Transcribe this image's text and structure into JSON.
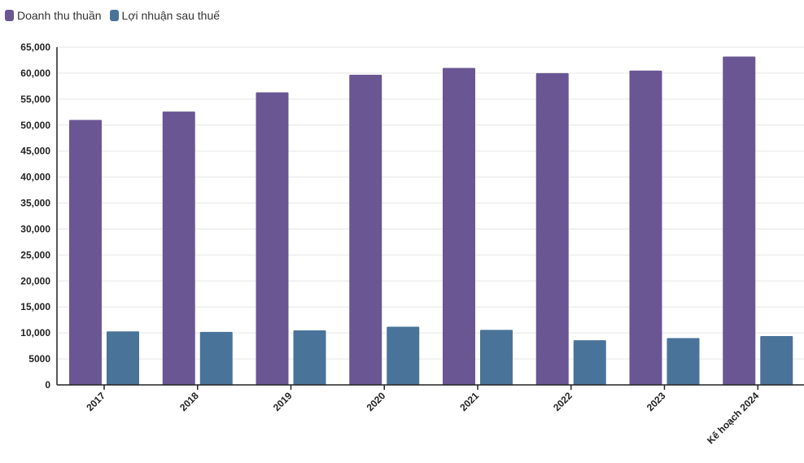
{
  "legend": [
    {
      "label": "Doanh thu thuần",
      "color": "#6a5693"
    },
    {
      "label": "Lợi nhuận sau thuế",
      "color": "#4a7399"
    }
  ],
  "chart_data": {
    "type": "bar",
    "categories": [
      "2017",
      "2018",
      "2019",
      "2020",
      "2021",
      "2022",
      "2023",
      "Kế hoạch 2024"
    ],
    "series": [
      {
        "name": "Doanh thu thuần",
        "color": "#6a5693",
        "values": [
          51000,
          52600,
          56300,
          59700,
          61000,
          60000,
          60500,
          63200
        ]
      },
      {
        "name": "Lợi nhuận sau thuế",
        "color": "#4a7399",
        "values": [
          10300,
          10200,
          10500,
          11200,
          10600,
          8600,
          9000,
          9400
        ]
      }
    ],
    "ylim": [
      0,
      65000
    ],
    "yticks": [
      {
        "value": 0,
        "label": "0"
      },
      {
        "value": 5000,
        "label": "5000"
      },
      {
        "value": 10000,
        "label": "10,000"
      },
      {
        "value": 15000,
        "label": "15,000"
      },
      {
        "value": 20000,
        "label": "20,000"
      },
      {
        "value": 25000,
        "label": "25,000"
      },
      {
        "value": 30000,
        "label": "30,000"
      },
      {
        "value": 35000,
        "label": "35,000"
      },
      {
        "value": 40000,
        "label": "40,000"
      },
      {
        "value": 45000,
        "label": "45,000"
      },
      {
        "value": 50000,
        "label": "50,000"
      },
      {
        "value": 55000,
        "label": "55,000"
      },
      {
        "value": 60000,
        "label": "60,000"
      },
      {
        "value": 65000,
        "label": "65,000"
      }
    ],
    "grid": true,
    "legend_position": "top-left",
    "x_label_rotation": "diagonal"
  }
}
